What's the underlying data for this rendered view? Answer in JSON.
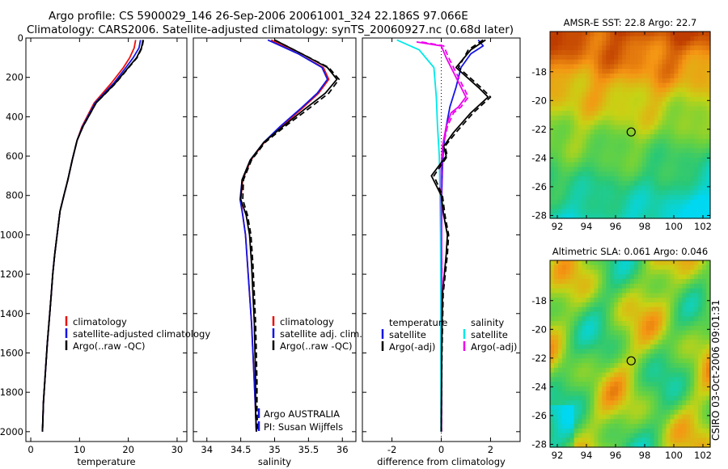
{
  "header": {
    "line1": "Argo profile: CS 5900029_146 26-Sep-2006 20061001_324 22.186S 97.066E",
    "line2": "Climatology: CARS2006. Satellite-adjusted climatology: synTS_20060927.nc (0.68d later)"
  },
  "stamp": "CSIRO 03-Oct-2006 09:01:31",
  "colors": {
    "red": "#e8120c",
    "blue": "#1414e6",
    "black": "#000000",
    "magenta": "#ee00ee",
    "cyan": "#00e8e8"
  },
  "chart_data": [
    {
      "type": "line",
      "xlabel": "temperature",
      "xlim": [
        -1,
        32
      ],
      "ylim": [
        2050,
        0
      ],
      "y_reversed": true,
      "xticks": [
        0,
        10,
        20,
        30
      ],
      "yticks": [
        0,
        200,
        400,
        600,
        800,
        1000,
        1200,
        1400,
        1600,
        1800,
        2000
      ],
      "legend": [
        "climatology",
        "satellite-adjusted climatology",
        "Argo(..raw -QC)"
      ],
      "series": [
        {
          "name": "climatology",
          "color": "red",
          "dash": false,
          "x": [
            21.5,
            21.2,
            20.3,
            19.0,
            16.5,
            13.0,
            10.5,
            9.5,
            8.5,
            7.6,
            6.8,
            6.0,
            5.4,
            4.9,
            4.5,
            4.2,
            3.9,
            3.4,
            3.0,
            2.6,
            2.4
          ],
          "y": [
            10,
            50,
            100,
            150,
            230,
            330,
            450,
            520,
            620,
            720,
            800,
            880,
            1000,
            1100,
            1200,
            1300,
            1400,
            1550,
            1700,
            1850,
            2000
          ]
        },
        {
          "name": "satellite-adjusted climatology",
          "color": "blue",
          "dash": false,
          "x": [
            22.5,
            22.2,
            21.0,
            19.5,
            17.0,
            13.2,
            10.6,
            9.5,
            8.5,
            7.6,
            6.8,
            6.0,
            5.4,
            4.9,
            4.5,
            4.2,
            3.9,
            3.4,
            3.0,
            2.6,
            2.4
          ],
          "y": [
            10,
            50,
            100,
            150,
            230,
            330,
            450,
            520,
            620,
            720,
            800,
            880,
            1000,
            1100,
            1200,
            1300,
            1400,
            1550,
            1700,
            1850,
            2000
          ]
        },
        {
          "name": "Argo(..raw -QC)",
          "color": "black",
          "dash": false,
          "x": [
            23.0,
            22.7,
            21.7,
            20.0,
            17.3,
            13.4,
            10.7,
            9.5,
            8.5,
            7.6,
            6.8,
            6.0,
            5.4,
            4.9,
            4.5,
            4.2,
            3.9,
            3.4,
            3.0,
            2.6,
            2.4
          ],
          "y": [
            10,
            50,
            100,
            150,
            230,
            330,
            450,
            520,
            620,
            720,
            800,
            880,
            1000,
            1100,
            1200,
            1300,
            1400,
            1550,
            1700,
            1850,
            2000
          ]
        },
        {
          "name": "",
          "color": "black",
          "dash": true,
          "x": [
            23.1,
            22.8,
            21.8,
            20.1,
            17.4,
            13.4,
            10.7,
            9.5,
            8.5,
            7.6,
            6.8,
            6.0,
            5.4,
            4.9,
            4.5,
            4.2,
            3.9,
            3.4,
            3.0,
            2.6,
            2.4
          ],
          "y": [
            10,
            50,
            100,
            150,
            230,
            330,
            450,
            520,
            620,
            720,
            800,
            880,
            1000,
            1100,
            1200,
            1300,
            1400,
            1550,
            1700,
            1850,
            2000
          ]
        }
      ]
    },
    {
      "type": "line",
      "xlabel": "salinity",
      "xlim": [
        33.8,
        36.2
      ],
      "ylim": [
        2050,
        0
      ],
      "y_reversed": true,
      "xticks": [
        34,
        34.5,
        35,
        35.5,
        36
      ],
      "yticks": [
        0,
        200,
        400,
        600,
        800,
        1000,
        1200,
        1400,
        1600,
        1800,
        2000
      ],
      "legend": [
        "climatology",
        "satellite adj. clim.",
        "Argo(..raw -QC)"
      ],
      "annotation": [
        "Argo AUSTRALIA",
        "PI: Susan Wijffels"
      ],
      "series": [
        {
          "name": "climatology",
          "color": "red",
          "dash": false,
          "x": [
            34.95,
            35.35,
            35.72,
            35.8,
            35.65,
            35.4,
            35.1,
            34.85,
            34.65,
            34.53,
            34.5,
            34.53,
            34.57,
            34.6,
            34.63,
            34.66,
            34.68,
            34.7,
            34.72,
            34.73
          ],
          "y": [
            10,
            80,
            150,
            210,
            280,
            360,
            450,
            530,
            620,
            720,
            820,
            900,
            1000,
            1150,
            1300,
            1450,
            1600,
            1750,
            1900,
            2000
          ]
        },
        {
          "name": "satellite adj. clim.",
          "color": "blue",
          "dash": false,
          "x": [
            34.9,
            35.35,
            35.7,
            35.78,
            35.63,
            35.38,
            35.08,
            34.84,
            34.64,
            34.52,
            34.49,
            34.53,
            34.57,
            34.6,
            34.63,
            34.66,
            34.68,
            34.7,
            34.72,
            34.73
          ],
          "y": [
            10,
            80,
            150,
            210,
            280,
            360,
            450,
            530,
            620,
            720,
            820,
            900,
            1000,
            1150,
            1300,
            1450,
            1600,
            1750,
            1900,
            2000
          ]
        },
        {
          "name": "Argo(..raw -QC)",
          "color": "black",
          "dash": false,
          "x": [
            35.0,
            35.4,
            35.78,
            35.92,
            35.75,
            35.45,
            35.12,
            34.84,
            34.64,
            34.52,
            34.5,
            34.58,
            34.63,
            34.66,
            34.68,
            34.7,
            34.71,
            34.72,
            34.72,
            34.73
          ],
          "y": [
            10,
            80,
            150,
            210,
            280,
            360,
            450,
            530,
            620,
            720,
            820,
            900,
            1000,
            1150,
            1300,
            1450,
            1600,
            1750,
            1900,
            2000
          ]
        },
        {
          "name": "",
          "color": "black",
          "dash": true,
          "x": [
            35.0,
            35.4,
            35.8,
            35.95,
            35.8,
            35.5,
            35.15,
            34.86,
            34.66,
            34.54,
            34.53,
            34.6,
            34.65,
            34.68,
            34.7,
            34.72,
            34.73,
            34.74,
            34.74,
            34.75
          ],
          "y": [
            10,
            80,
            150,
            210,
            280,
            360,
            450,
            530,
            620,
            720,
            820,
            900,
            1000,
            1150,
            1300,
            1450,
            1600,
            1750,
            1900,
            2000
          ]
        }
      ]
    },
    {
      "type": "line",
      "xlabel": "difference from climatology",
      "xlim": [
        -3.2,
        3.2
      ],
      "ylim": [
        2050,
        0
      ],
      "y_reversed": true,
      "xticks": [
        -2,
        0,
        2
      ],
      "yticks": [
        0,
        200,
        400,
        600,
        800,
        1000,
        1200,
        1400,
        1600,
        1800,
        2000
      ],
      "zero_line": true,
      "legend_headers": [
        "temperature",
        "salinity"
      ],
      "legend": [
        "satellite",
        "satellite",
        "Argo(-adj)",
        "Argo(-adj)"
      ],
      "series": [
        {
          "name": "",
          "color": "blue",
          "dash": false,
          "x": [
            1.5,
            1.7,
            1.2,
            0.8,
            0.6,
            0.35,
            0.2,
            0.1,
            0.05,
            0.02,
            0.0
          ],
          "y": [
            10,
            40,
            80,
            150,
            250,
            350,
            450,
            550,
            650,
            800,
            2000
          ]
        },
        {
          "name": "",
          "color": "cyan",
          "dash": false,
          "x": [
            -1.8,
            -0.9,
            -0.3,
            -0.2,
            -0.15,
            -0.08,
            -0.05,
            -0.03,
            -0.02,
            -0.02,
            -0.01
          ],
          "y": [
            10,
            60,
            150,
            300,
            450,
            600,
            800,
            1000,
            1300,
            1600,
            2000
          ]
        },
        {
          "name": "",
          "color": "magenta",
          "dash": false,
          "x": [
            -1.0,
            0.0,
            0.2,
            0.6,
            1.0,
            0.7,
            0.4,
            0.2,
            0.05,
            0.0,
            0.0,
            0.02,
            0.01
          ],
          "y": [
            20,
            40,
            100,
            200,
            300,
            350,
            380,
            450,
            550,
            650,
            800,
            1200,
            2000
          ]
        },
        {
          "name": "",
          "color": "magenta",
          "dash": true,
          "x": [
            -0.8,
            0.1,
            0.3,
            0.7,
            1.1,
            0.8,
            0.5,
            0.25,
            0.08,
            0.02,
            0.0,
            0.03,
            0.01
          ],
          "y": [
            20,
            40,
            100,
            200,
            300,
            350,
            380,
            450,
            550,
            650,
            800,
            1200,
            2000
          ]
        },
        {
          "name": "",
          "color": "black",
          "dash": false,
          "x": [
            1.8,
            1.2,
            0.6,
            1.5,
            1.9,
            1.2,
            0.5,
            0.1,
            0.2,
            -0.4,
            0.0,
            0.1,
            0.25,
            0.2,
            0.05,
            0.02,
            0.0
          ],
          "y": [
            10,
            60,
            150,
            250,
            300,
            380,
            480,
            550,
            600,
            700,
            800,
            900,
            1000,
            1100,
            1300,
            1600,
            2000
          ]
        },
        {
          "name": "",
          "color": "black",
          "dash": true,
          "x": [
            1.7,
            1.1,
            0.7,
            1.6,
            2.0,
            1.3,
            0.6,
            0.15,
            0.25,
            -0.3,
            0.05,
            0.15,
            0.3,
            0.25,
            0.08,
            0.03,
            0.0
          ],
          "y": [
            10,
            60,
            150,
            250,
            300,
            380,
            480,
            550,
            600,
            700,
            800,
            900,
            1000,
            1100,
            1300,
            1600,
            2000
          ]
        }
      ]
    },
    {
      "type": "heatmap",
      "title": "AMSR-E SST: 22.8 Argo: 22.7",
      "xlim": [
        91.5,
        102.5
      ],
      "ylim": [
        -28.2,
        -15.2
      ],
      "xticks": [
        92,
        94,
        96,
        98,
        100,
        102
      ],
      "yticks": [
        -18,
        -20,
        -22,
        -24,
        -26,
        -28
      ],
      "marker": {
        "lon": 97.07,
        "lat": -22.19
      }
    },
    {
      "type": "heatmap",
      "title": "Altimetric SLA: 0.061 Argo: 0.046",
      "xlim": [
        91.5,
        102.5
      ],
      "ylim": [
        -28.2,
        -15.2
      ],
      "xticks": [
        92,
        94,
        96,
        98,
        100,
        102
      ],
      "yticks": [
        -18,
        -20,
        -22,
        -24,
        -26,
        -28
      ],
      "marker": {
        "lon": 97.07,
        "lat": -22.19
      }
    }
  ]
}
